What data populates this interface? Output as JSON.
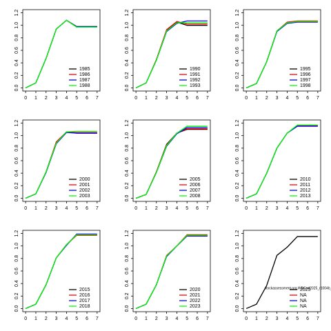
{
  "chart_data": [
    {
      "type": "line",
      "x": [
        0,
        1,
        2,
        3,
        4,
        5,
        6,
        7
      ],
      "xlim": [
        -0.28,
        7.28
      ],
      "xticks": [
        0,
        1,
        2,
        3,
        4,
        5,
        6,
        7
      ],
      "ylim": [
        -0.05,
        1.25
      ],
      "yticks": [
        {
          "value": 0,
          "label": "0.0"
        },
        0.2,
        0.4,
        0.6,
        0.8,
        {
          "value": 1,
          "label": "1.0"
        },
        1.2
      ],
      "legend": "bottom-right",
      "series": [
        {
          "name": "1985",
          "color": "#000000",
          "values": [
            0,
            0.08,
            0.47,
            0.94,
            1.08,
            0.98,
            0.98,
            0.98
          ]
        },
        {
          "name": "1986",
          "color": "#ff0000",
          "values": [
            0,
            0.08,
            0.47,
            0.94,
            1.08,
            0.98,
            0.98,
            0.98
          ]
        },
        {
          "name": "1987",
          "color": "#0000ff",
          "values": [
            0,
            0.08,
            0.47,
            0.94,
            1.08,
            0.98,
            0.98,
            0.98
          ]
        },
        {
          "name": "1988",
          "color": "#00ff00",
          "values": [
            0,
            0.08,
            0.47,
            0.94,
            1.08,
            0.97,
            0.97,
            0.97
          ]
        }
      ]
    },
    {
      "type": "line",
      "x": [
        0,
        1,
        2,
        3,
        4,
        5,
        6,
        7
      ],
      "xlim": [
        -0.28,
        7.28
      ],
      "xticks": [
        0,
        1,
        2,
        3,
        4,
        5,
        6,
        7
      ],
      "ylim": [
        -0.05,
        1.25
      ],
      "yticks": [
        {
          "value": 0,
          "label": "0.0"
        },
        0.2,
        0.4,
        0.6,
        0.8,
        {
          "value": 1,
          "label": "1.0"
        },
        1.2
      ],
      "legend": "bottom-right",
      "series": [
        {
          "name": "1990",
          "color": "#000000",
          "values": [
            0,
            0.08,
            0.45,
            0.92,
            1.05,
            1.0,
            1.0,
            1.0
          ]
        },
        {
          "name": "1991",
          "color": "#ff0000",
          "values": [
            0,
            0.08,
            0.45,
            0.93,
            1.06,
            1.02,
            1.02,
            1.02
          ]
        },
        {
          "name": "1992",
          "color": "#0000ff",
          "values": [
            0,
            0.08,
            0.44,
            0.9,
            1.03,
            1.07,
            1.07,
            1.07
          ]
        },
        {
          "name": "1993",
          "color": "#00ff00",
          "values": [
            0,
            0.08,
            0.44,
            0.91,
            1.04,
            1.04,
            1.04,
            1.04
          ]
        }
      ]
    },
    {
      "type": "line",
      "x": [
        0,
        1,
        2,
        3,
        4,
        5,
        6,
        7
      ],
      "xlim": [
        -0.28,
        7.28
      ],
      "xticks": [
        0,
        1,
        2,
        3,
        4,
        5,
        6,
        7
      ],
      "ylim": [
        -0.05,
        1.25
      ],
      "yticks": [
        {
          "value": 0,
          "label": "0.0"
        },
        0.2,
        0.4,
        0.6,
        0.8,
        {
          "value": 1,
          "label": "1.0"
        },
        1.2
      ],
      "legend": "bottom-right",
      "series": [
        {
          "name": "1995",
          "color": "#000000",
          "values": [
            0,
            0.07,
            0.42,
            0.91,
            1.04,
            1.06,
            1.06,
            1.06
          ]
        },
        {
          "name": "1996",
          "color": "#ff0000",
          "values": [
            0,
            0.07,
            0.42,
            0.91,
            1.05,
            1.07,
            1.07,
            1.07
          ]
        },
        {
          "name": "1997",
          "color": "#0000ff",
          "values": [
            0,
            0.07,
            0.42,
            0.9,
            1.03,
            1.05,
            1.05,
            1.05
          ]
        },
        {
          "name": "1998",
          "color": "#00ff00",
          "values": [
            0,
            0.07,
            0.42,
            0.91,
            1.04,
            1.06,
            1.06,
            1.06
          ]
        }
      ]
    },
    {
      "type": "line",
      "x": [
        0,
        1,
        2,
        3,
        4,
        5,
        6,
        7
      ],
      "xlim": [
        -0.28,
        7.28
      ],
      "xticks": [
        0,
        1,
        2,
        3,
        4,
        5,
        6,
        7
      ],
      "ylim": [
        -0.05,
        1.25
      ],
      "yticks": [
        {
          "value": 0,
          "label": "0.0"
        },
        0.2,
        0.4,
        0.6,
        0.8,
        {
          "value": 1,
          "label": "1.0"
        },
        1.2
      ],
      "legend": "bottom-right",
      "series": [
        {
          "name": "2000",
          "color": "#000000",
          "values": [
            0,
            0.07,
            0.42,
            0.89,
            1.06,
            1.04,
            1.04,
            1.04
          ]
        },
        {
          "name": "2001",
          "color": "#ff0000",
          "values": [
            0,
            0.07,
            0.42,
            0.9,
            1.06,
            1.05,
            1.05,
            1.05
          ]
        },
        {
          "name": "2002",
          "color": "#0000ff",
          "values": [
            0,
            0.07,
            0.41,
            0.87,
            1.05,
            1.04,
            1.04,
            1.04
          ]
        },
        {
          "name": "2003",
          "color": "#00ff00",
          "values": [
            0,
            0.07,
            0.42,
            0.88,
            1.06,
            1.07,
            1.07,
            1.07
          ]
        }
      ]
    },
    {
      "type": "line",
      "x": [
        0,
        1,
        2,
        3,
        4,
        5,
        6,
        7
      ],
      "xlim": [
        -0.28,
        7.28
      ],
      "xticks": [
        0,
        1,
        2,
        3,
        4,
        5,
        6,
        7
      ],
      "ylim": [
        -0.05,
        1.25
      ],
      "yticks": [
        {
          "value": 0,
          "label": "0.0"
        },
        0.2,
        0.4,
        0.6,
        0.8,
        {
          "value": 1,
          "label": "1.0"
        },
        1.2
      ],
      "legend": "bottom-right",
      "series": [
        {
          "name": "2005",
          "color": "#000000",
          "values": [
            0,
            0.06,
            0.42,
            0.86,
            1.04,
            1.1,
            1.1,
            1.1
          ]
        },
        {
          "name": "2006",
          "color": "#ff0000",
          "values": [
            0,
            0.06,
            0.42,
            0.85,
            1.04,
            1.11,
            1.11,
            1.11
          ]
        },
        {
          "name": "2007",
          "color": "#0000ff",
          "values": [
            0,
            0.06,
            0.41,
            0.83,
            1.03,
            1.13,
            1.13,
            1.13
          ]
        },
        {
          "name": "2008",
          "color": "#00ff00",
          "values": [
            0,
            0.06,
            0.41,
            0.84,
            1.04,
            1.15,
            1.15,
            1.15
          ]
        }
      ]
    },
    {
      "type": "line",
      "x": [
        0,
        1,
        2,
        3,
        4,
        5,
        6,
        7
      ],
      "xlim": [
        -0.28,
        7.28
      ],
      "xticks": [
        0,
        1,
        2,
        3,
        4,
        5,
        6,
        7
      ],
      "ylim": [
        -0.05,
        1.25
      ],
      "yticks": [
        {
          "value": 0,
          "label": "0.0"
        },
        0.2,
        0.4,
        0.6,
        0.8,
        {
          "value": 1,
          "label": "1.0"
        },
        1.2
      ],
      "legend": "bottom-right",
      "series": [
        {
          "name": "2010",
          "color": "#000000",
          "values": [
            0,
            0.07,
            0.4,
            0.8,
            1.04,
            1.16,
            1.16,
            1.16
          ]
        },
        {
          "name": "2011",
          "color": "#ff0000",
          "values": [
            0,
            0.07,
            0.4,
            0.8,
            1.04,
            1.16,
            1.16,
            1.16
          ]
        },
        {
          "name": "2012",
          "color": "#0000ff",
          "values": [
            0,
            0.07,
            0.4,
            0.8,
            1.04,
            1.15,
            1.15,
            1.15
          ]
        },
        {
          "name": "2013",
          "color": "#00ff00",
          "values": [
            0,
            0.07,
            0.4,
            0.8,
            1.04,
            1.17,
            1.17,
            1.17
          ]
        }
      ]
    },
    {
      "type": "line",
      "x": [
        0,
        1,
        2,
        3,
        4,
        5,
        6,
        7
      ],
      "xlim": [
        -0.28,
        7.28
      ],
      "xticks": [
        0,
        1,
        2,
        3,
        4,
        5,
        6,
        7
      ],
      "ylim": [
        -0.05,
        1.25
      ],
      "yticks": [
        {
          "value": 0,
          "label": "0.0"
        },
        0.2,
        0.4,
        0.6,
        0.8,
        {
          "value": 1,
          "label": "1.0"
        },
        1.2
      ],
      "legend": "bottom-right",
      "series": [
        {
          "name": "2015",
          "color": "#000000",
          "values": [
            0,
            0.07,
            0.38,
            0.81,
            1.02,
            1.18,
            1.18,
            1.18
          ]
        },
        {
          "name": "2016",
          "color": "#ff0000",
          "values": [
            0,
            0.07,
            0.38,
            0.81,
            1.02,
            1.17,
            1.17,
            1.17
          ]
        },
        {
          "name": "2017",
          "color": "#0000ff",
          "values": [
            0,
            0.07,
            0.38,
            0.81,
            1.01,
            1.19,
            1.19,
            1.19
          ]
        },
        {
          "name": "2018",
          "color": "#00ff00",
          "values": [
            0,
            0.07,
            0.38,
            0.81,
            1.02,
            1.18,
            1.18,
            1.18
          ]
        }
      ]
    },
    {
      "type": "line",
      "x": [
        0,
        1,
        2,
        3,
        4,
        5,
        6,
        7
      ],
      "xlim": [
        -0.28,
        7.28
      ],
      "xticks": [
        0,
        1,
        2,
        3,
        4,
        5,
        6,
        7
      ],
      "ylim": [
        -0.05,
        1.25
      ],
      "yticks": [
        {
          "value": 0,
          "label": "0.0"
        },
        0.2,
        0.4,
        0.6,
        0.8,
        {
          "value": 1,
          "label": "1.0"
        },
        1.2
      ],
      "legend": "bottom-right",
      "series": [
        {
          "name": "2020",
          "color": "#000000",
          "values": [
            0,
            0.07,
            0.38,
            0.84,
            1.0,
            1.16,
            1.16,
            1.16
          ]
        },
        {
          "name": "2021",
          "color": "#ff0000",
          "values": [
            0,
            0.07,
            0.38,
            0.85,
            1.0,
            1.18,
            1.18,
            1.18
          ]
        },
        {
          "name": "2022",
          "color": "#0000ff",
          "values": [
            0,
            0.07,
            0.38,
            0.83,
            1.0,
            1.16,
            1.16,
            1.16
          ]
        },
        {
          "name": "2023",
          "color": "#00ff00",
          "values": [
            0,
            0.07,
            0.38,
            0.84,
            1.0,
            1.17,
            1.17,
            1.17
          ]
        }
      ]
    },
    {
      "type": "line",
      "x": [
        0,
        1,
        2,
        3,
        4,
        5,
        6,
        7
      ],
      "xlim": [
        -0.28,
        7.28
      ],
      "xticks": [
        0,
        1,
        2,
        3,
        4,
        5,
        6,
        7
      ],
      "ylim": [
        -0.05,
        1.25
      ],
      "yticks": [
        {
          "value": 0,
          "label": "0.0"
        },
        0.2,
        0.4,
        0.6,
        0.8,
        {
          "value": 1,
          "label": "1.0"
        },
        1.2
      ],
      "legend": "bottom-right",
      "annotation": "stockassessment.org,WBCod2025_r1004b_alt1cc4fc0c",
      "series": [
        {
          "name": "2025",
          "color": "#000000",
          "values": [
            0,
            0.07,
            0.37,
            0.85,
            0.98,
            1.15,
            1.15,
            1.15
          ]
        },
        {
          "name": "NA",
          "color": "#ff0000",
          "values": [
            null,
            null,
            null,
            null,
            null,
            null,
            null,
            null
          ]
        },
        {
          "name": "NA",
          "color": "#0000ff",
          "values": [
            null,
            null,
            null,
            null,
            null,
            null,
            null,
            null
          ]
        },
        {
          "name": "NA",
          "color": "#00ff00",
          "values": [
            null,
            null,
            null,
            null,
            null,
            null,
            null,
            null
          ]
        }
      ]
    }
  ]
}
